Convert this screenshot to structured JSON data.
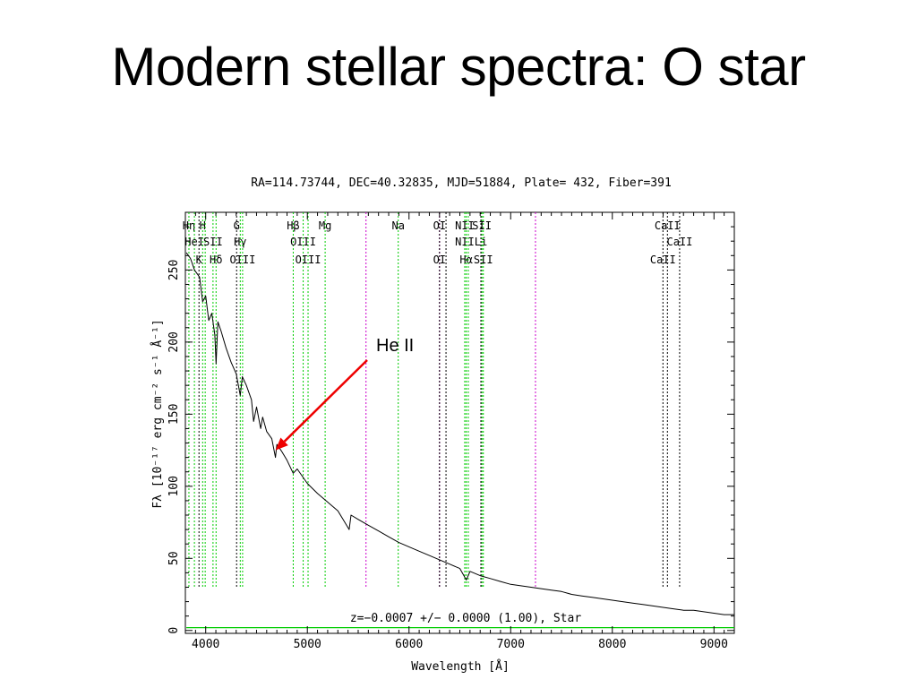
{
  "slide": {
    "title": "Modern stellar spectra: O star"
  },
  "annotation": {
    "label": "He II",
    "arrow_color": "#ee0000",
    "target_x": 4686,
    "target_y": 125
  },
  "chart_data": {
    "type": "line",
    "header": "RA=114.73744, DEC=40.32835, MJD=51884, Plate= 432, Fiber=391",
    "xlabel": "Wavelength [Å]",
    "ylabel": "Fλ [10⁻¹⁷ erg cm⁻² s⁻¹ Å⁻¹]",
    "footer": "z=−0.0007 +/− 0.0000 (1.00), Star",
    "xlim": [
      3800,
      9200
    ],
    "ylim": [
      -2,
      290
    ],
    "xticks": [
      4000,
      5000,
      6000,
      7000,
      8000,
      9000
    ],
    "yticks": [
      0,
      50,
      100,
      150,
      200,
      250
    ],
    "grid": false,
    "colors": {
      "spectrum": "#000000",
      "error": "#00cc00",
      "emission": "#00cc00",
      "absorption": "#000000",
      "sky": "#cc00cc"
    },
    "series": [
      {
        "name": "flux",
        "x": [
          3810,
          3850,
          3890,
          3940,
          3970,
          4000,
          4030,
          4060,
          4090,
          4102,
          4120,
          4150,
          4200,
          4250,
          4300,
          4340,
          4360,
          4400,
          4450,
          4471,
          4500,
          4541,
          4560,
          4600,
          4650,
          4686,
          4700,
          4750,
          4800,
          4861,
          4900,
          5000,
          5100,
          5200,
          5300,
          5411,
          5430,
          5500,
          5600,
          5700,
          5800,
          5900,
          6000,
          6100,
          6200,
          6300,
          6400,
          6500,
          6563,
          6600,
          6700,
          6800,
          6900,
          7000,
          7100,
          7200,
          7300,
          7400,
          7500,
          7600,
          7700,
          7800,
          7900,
          8000,
          8100,
          8200,
          8300,
          8400,
          8500,
          8600,
          8700,
          8800,
          8900,
          9000,
          9100,
          9200
        ],
        "y": [
          262,
          258,
          250,
          245,
          228,
          232,
          215,
          220,
          205,
          185,
          214,
          208,
          196,
          186,
          178,
          163,
          176,
          170,
          160,
          145,
          155,
          140,
          148,
          138,
          133,
          120,
          129,
          124,
          118,
          109,
          112,
          102,
          95,
          89,
          83,
          70,
          80,
          77,
          73,
          69,
          65,
          61,
          58,
          55,
          52,
          49,
          46,
          43,
          35,
          41,
          38,
          36,
          34,
          32,
          31,
          30,
          29,
          28,
          27,
          25,
          24,
          23,
          22,
          21,
          20,
          19,
          18,
          17,
          16,
          15,
          14,
          14,
          13,
          12,
          11,
          11
        ]
      },
      {
        "name": "error",
        "x": [
          3810,
          4500,
          5500,
          6500,
          7500,
          8500,
          9200
        ],
        "y": [
          2,
          2,
          2,
          2,
          2,
          2,
          2
        ]
      }
    ],
    "lines": [
      {
        "x": 3835,
        "label": "Hη",
        "row": 1,
        "color": "#00cc00"
      },
      {
        "x": 3889,
        "label": "HeI",
        "row": 2,
        "color": "#00cc00"
      },
      {
        "x": 3934,
        "label": "K",
        "row": 3,
        "color": "#000000"
      },
      {
        "x": 3970,
        "label": "H",
        "row": 1,
        "color": "#00cc00"
      },
      {
        "x": 3995,
        "label": "",
        "row": 0,
        "color": "#00cc00"
      },
      {
        "x": 4072,
        "label": "SII",
        "row": 2,
        "color": "#00cc00"
      },
      {
        "x": 4102,
        "label": "Hδ",
        "row": 3,
        "color": "#00cc00"
      },
      {
        "x": 4304,
        "label": "G",
        "row": 1,
        "color": "#000000"
      },
      {
        "x": 4340,
        "label": "Hγ",
        "row": 2,
        "color": "#00cc00"
      },
      {
        "x": 4363,
        "label": "OIII",
        "row": 3,
        "color": "#00cc00"
      },
      {
        "x": 4861,
        "label": "Hβ",
        "row": 1,
        "color": "#00cc00"
      },
      {
        "x": 4959,
        "label": "OIII",
        "row": 2,
        "color": "#00cc00"
      },
      {
        "x": 5007,
        "label": "OIII",
        "row": 3,
        "color": "#00cc00"
      },
      {
        "x": 5175,
        "label": "Mg",
        "row": 1,
        "color": "#00cc00"
      },
      {
        "x": 5577,
        "label": "",
        "row": 0,
        "color": "#cc00cc"
      },
      {
        "x": 5894,
        "label": "Na",
        "row": 1,
        "color": "#00cc00"
      },
      {
        "x": 6300,
        "label": "OI",
        "row": 1,
        "color": "#cc00cc"
      },
      {
        "x": 6300,
        "label": "OI",
        "row": 3,
        "color": "#000000"
      },
      {
        "x": 6364,
        "label": "",
        "row": 0,
        "color": "#000000"
      },
      {
        "x": 6548,
        "label": "NII",
        "row": 1,
        "color": "#00cc00"
      },
      {
        "x": 6548,
        "label": "NII",
        "row": 2,
        "color": "#00cc00"
      },
      {
        "x": 6563,
        "label": "Hα",
        "row": 3,
        "color": "#00cc00"
      },
      {
        "x": 6583,
        "label": "",
        "row": 0,
        "color": "#00cc00"
      },
      {
        "x": 6707,
        "label": "Li",
        "row": 2,
        "color": "#000000"
      },
      {
        "x": 6717,
        "label": "SII",
        "row": 1,
        "color": "#00cc00"
      },
      {
        "x": 6731,
        "label": "SII",
        "row": 3,
        "color": "#00cc00"
      },
      {
        "x": 7244,
        "label": "",
        "row": 0,
        "color": "#cc00cc"
      },
      {
        "x": 8498,
        "label": "CaII",
        "row": 3,
        "color": "#000000"
      },
      {
        "x": 8542,
        "label": "CaII",
        "row": 1,
        "color": "#000000"
      },
      {
        "x": 8662,
        "label": "CaII",
        "row": 2,
        "color": "#000000"
      }
    ]
  }
}
